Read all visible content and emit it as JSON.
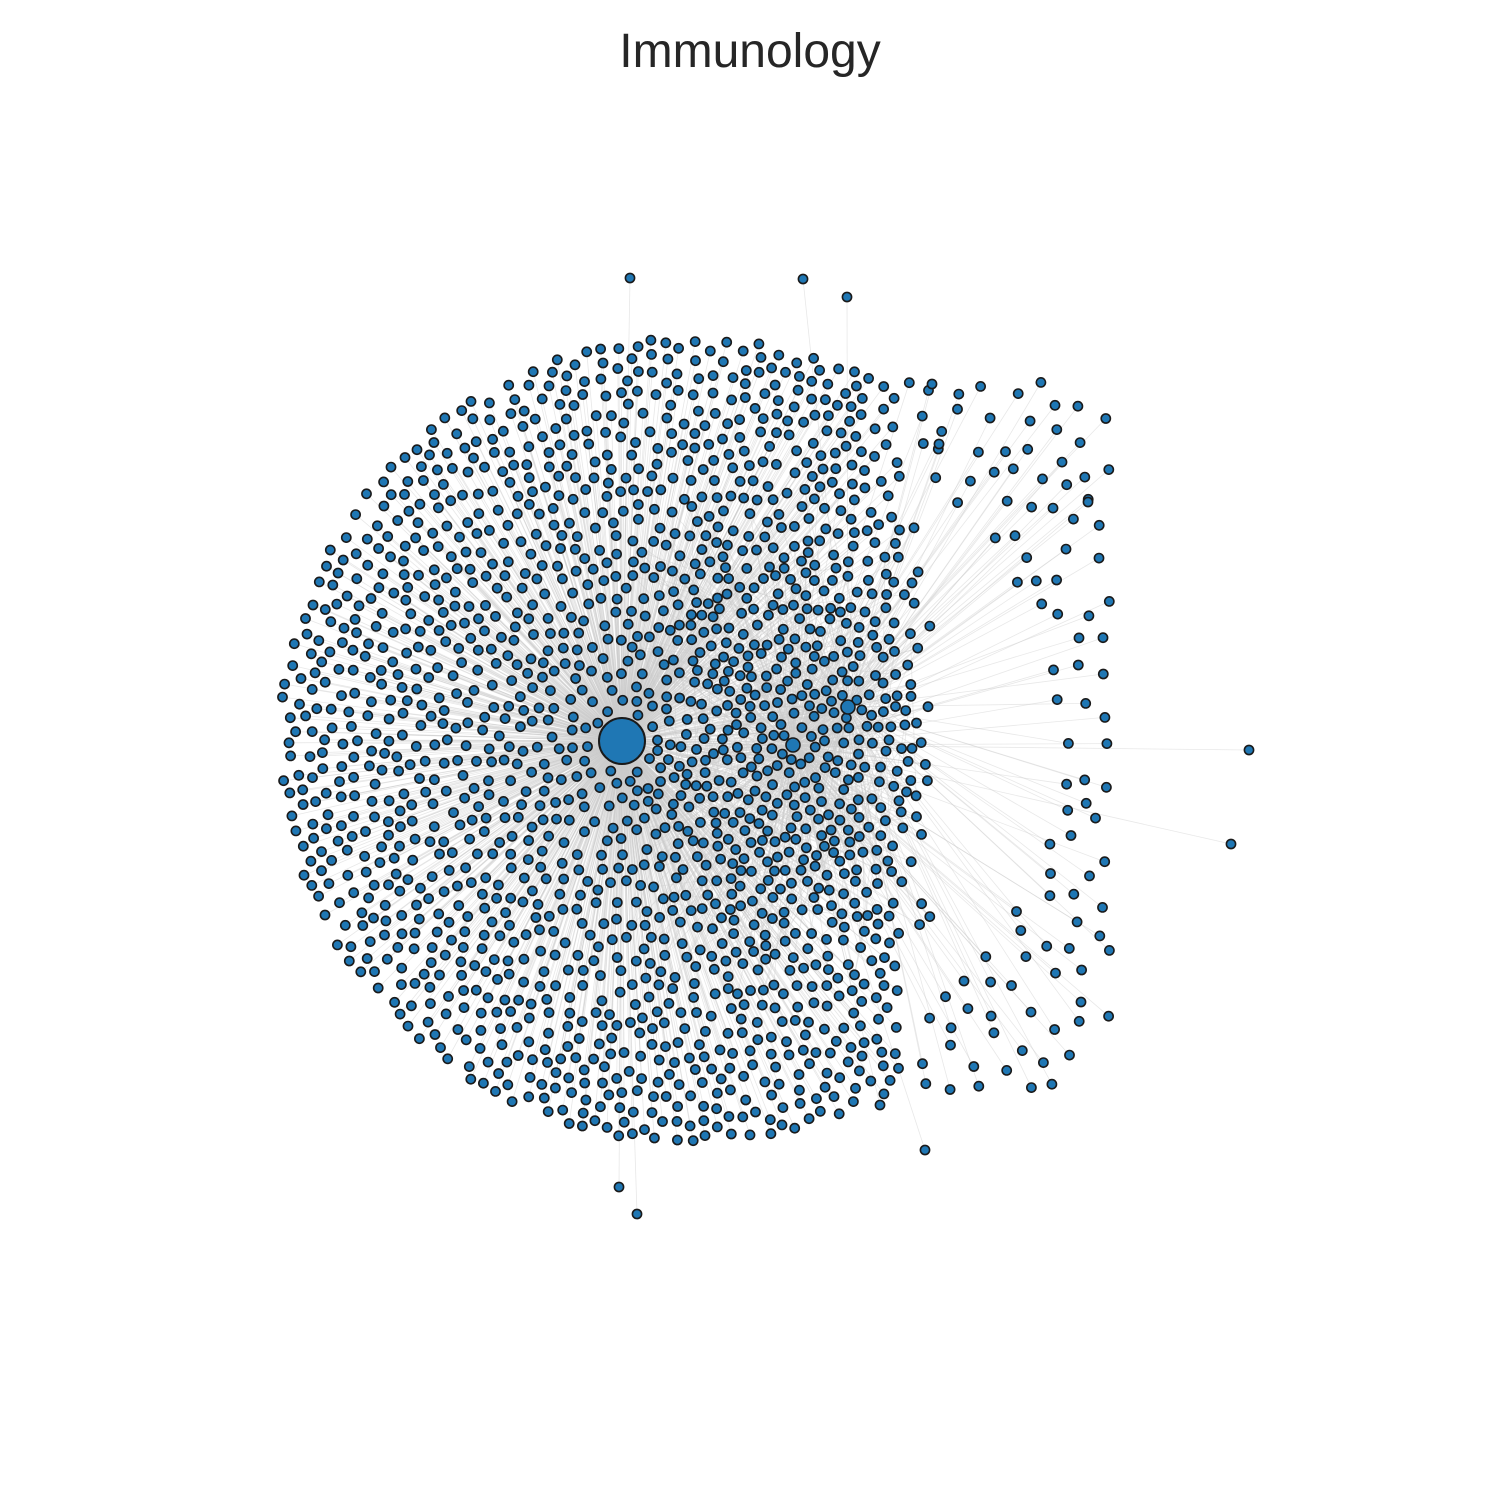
{
  "title": "Immunology",
  "network": {
    "graph_type": "star-shaped network with a dense secondary cluster",
    "node_color": "#1f77b4",
    "node_stroke_color": "#1a1a1a",
    "edge_color": "#cccccc",
    "background_color": "#ffffff"
  }
}
